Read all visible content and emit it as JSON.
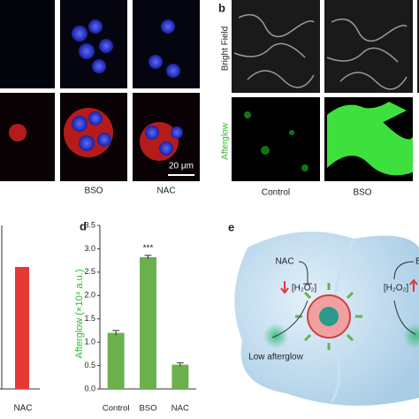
{
  "chart_data": {
    "type": "bar",
    "panel": "d",
    "y_label": "Afterglow (×10⁴ a.u.)",
    "categories": [
      "Control",
      "BSO",
      "NAC"
    ],
    "values": [
      1.2,
      2.82,
      0.52
    ],
    "errors": [
      0.05,
      0.04,
      0.04
    ],
    "color": "#6ab04c",
    "annotations": [
      {
        "category": 1,
        "text": "***"
      }
    ],
    "ylim": [
      0,
      3.5
    ],
    "yticks": [
      {
        "value": 0,
        "label": "0.0"
      },
      {
        "value": 0.5,
        "label": "0.5"
      },
      {
        "value": 1,
        "label": "1.0"
      },
      {
        "value": 1.5,
        "label": "1.5"
      },
      {
        "value": 2,
        "label": "2.0"
      },
      {
        "value": 2.5,
        "label": "2.5"
      },
      {
        "value": 3,
        "label": "3.0"
      },
      {
        "value": 3.5,
        "label": "3.5"
      }
    ]
  },
  "panel_a": {
    "columns": [
      "BSO",
      "NAC"
    ],
    "scale_bar": "20 μm"
  },
  "panel_b": {
    "label": "b",
    "rows": [
      "Bright Field",
      "Afterglow"
    ],
    "columns": [
      "Control",
      "BSO"
    ]
  },
  "panel_c": {
    "categories": [
      "NAC"
    ]
  },
  "panel_e": {
    "label": "e",
    "left_agent": "NAC",
    "left_h2o2": "[H₂O₂]",
    "right_agent": "B",
    "right_h2o2": "[H₂O₂]",
    "left_result": "Low afterglow"
  }
}
